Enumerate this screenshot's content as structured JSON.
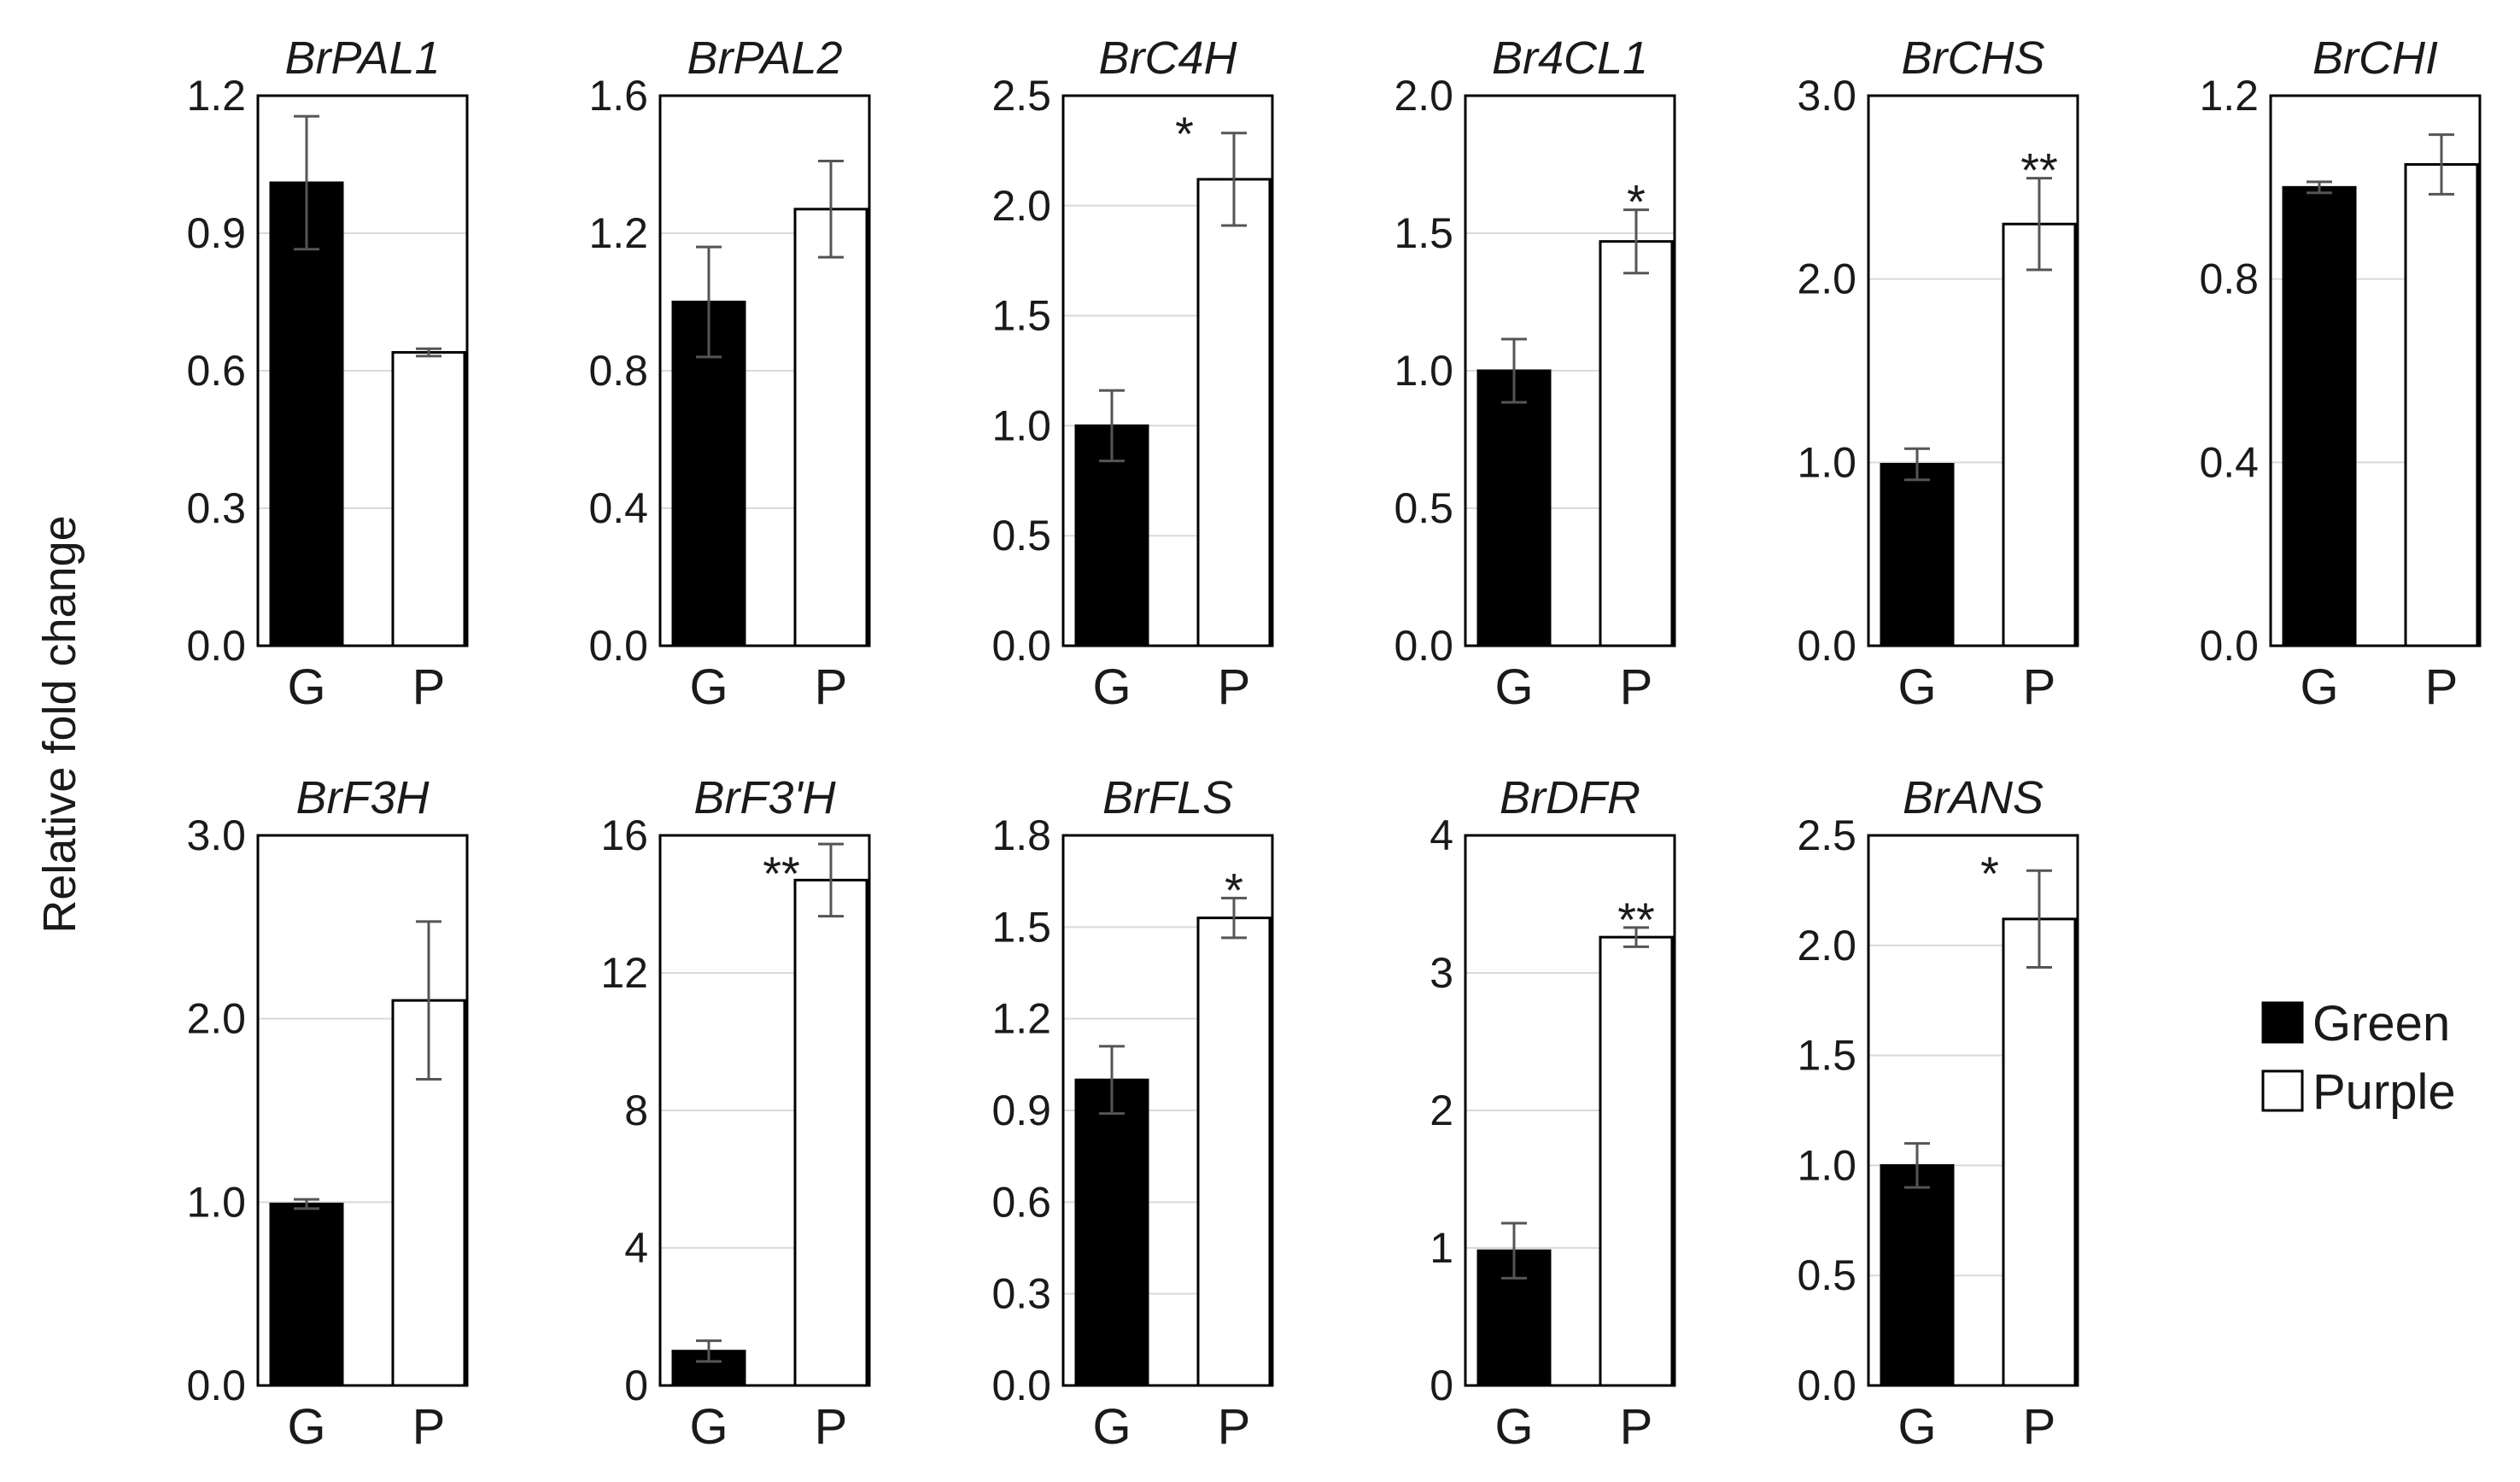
{
  "chart_data": {
    "type": "bar",
    "ylabel": "Relative  fold change",
    "legend": {
      "placement": "right",
      "entries": [
        {
          "name": "Green",
          "color": "#000000"
        },
        {
          "name": "Purple",
          "color": "#ffffff"
        }
      ]
    },
    "panels": [
      {
        "title": "BrPAL1",
        "categories": [
          "G",
          "P"
        ],
        "values": [
          1.01,
          0.64
        ],
        "errors": [
          0.145,
          0.008
        ],
        "significance": [
          "",
          ""
        ],
        "ylim": [
          0,
          1.2
        ],
        "yticks": [
          "0.0",
          "0.3",
          "0.6",
          "0.9",
          "1.2"
        ]
      },
      {
        "title": "BrPAL2",
        "categories": [
          "G",
          "P"
        ],
        "values": [
          1.0,
          1.27
        ],
        "errors": [
          0.16,
          0.14
        ],
        "significance": [
          "",
          ""
        ],
        "ylim": [
          0,
          1.6
        ],
        "yticks": [
          "0.0",
          "0.4",
          "0.8",
          "1.2",
          "1.6"
        ]
      },
      {
        "title": "BrC4H",
        "categories": [
          "G",
          "P"
        ],
        "values": [
          1.0,
          2.12
        ],
        "errors": [
          0.16,
          0.21
        ],
        "significance": [
          "",
          "*"
        ],
        "ylim": [
          0,
          2.5
        ],
        "yticks": [
          "0.0",
          "0.5",
          "1.0",
          "1.5",
          "2.0",
          "2.5"
        ]
      },
      {
        "title": "Br4CL1",
        "categories": [
          "G",
          "P"
        ],
        "values": [
          1.0,
          1.47
        ],
        "errors": [
          0.115,
          0.115
        ],
        "significance": [
          "",
          "*"
        ],
        "ylim": [
          0,
          2.0
        ],
        "yticks": [
          "0.0",
          "0.5",
          "1.0",
          "1.5",
          "2.0"
        ]
      },
      {
        "title": "BrCHS",
        "categories": [
          "G",
          "P"
        ],
        "values": [
          0.99,
          2.3
        ],
        "errors": [
          0.085,
          0.25
        ],
        "significance": [
          "",
          "**"
        ],
        "ylim": [
          0,
          3.0
        ],
        "yticks": [
          "0.0",
          "1.0",
          "2.0",
          "3.0"
        ]
      },
      {
        "title": "BrCHI",
        "categories": [
          "G",
          "P"
        ],
        "values": [
          1.0,
          1.05
        ],
        "errors": [
          0.012,
          0.065
        ],
        "significance": [
          "",
          ""
        ],
        "ylim": [
          0,
          1.2
        ],
        "yticks": [
          "0.0",
          "0.4",
          "0.8",
          "1.2"
        ]
      },
      {
        "title": "BrF3H",
        "categories": [
          "G",
          "P"
        ],
        "values": [
          0.99,
          2.1
        ],
        "errors": [
          0.025,
          0.43
        ],
        "significance": [
          "",
          ""
        ],
        "ylim": [
          0,
          3.0
        ],
        "yticks": [
          "0.0",
          "1.0",
          "2.0",
          "3.0"
        ]
      },
      {
        "title": "BrF3'H",
        "categories": [
          "G",
          "P"
        ],
        "values": [
          1.0,
          14.7
        ],
        "errors": [
          0.3,
          1.05
        ],
        "significance": [
          "",
          "**"
        ],
        "ylim": [
          0,
          16
        ],
        "yticks": [
          "0",
          "4",
          "8",
          "12",
          "16"
        ]
      },
      {
        "title": "BrFLS",
        "categories": [
          "G",
          "P"
        ],
        "values": [
          1.0,
          1.53
        ],
        "errors": [
          0.11,
          0.065
        ],
        "significance": [
          "",
          "*"
        ],
        "ylim": [
          0,
          1.8
        ],
        "yticks": [
          "0.0",
          "0.3",
          "0.6",
          "0.9",
          "1.2",
          "1.5",
          "1.8"
        ]
      },
      {
        "title": "BrDFR",
        "categories": [
          "G",
          "P"
        ],
        "values": [
          0.98,
          3.26
        ],
        "errors": [
          0.2,
          0.07
        ],
        "significance": [
          "",
          "**"
        ],
        "ylim": [
          0,
          4
        ],
        "yticks": [
          "0",
          "1",
          "2",
          "3",
          "4"
        ]
      },
      {
        "title": "BrANS",
        "categories": [
          "G",
          "P"
        ],
        "values": [
          1.0,
          2.12
        ],
        "errors": [
          0.1,
          0.22
        ],
        "significance": [
          "",
          "*"
        ],
        "ylim": [
          0,
          2.5
        ],
        "yticks": [
          "0.0",
          "0.5",
          "1.0",
          "1.5",
          "2.0",
          "2.5"
        ]
      }
    ]
  }
}
